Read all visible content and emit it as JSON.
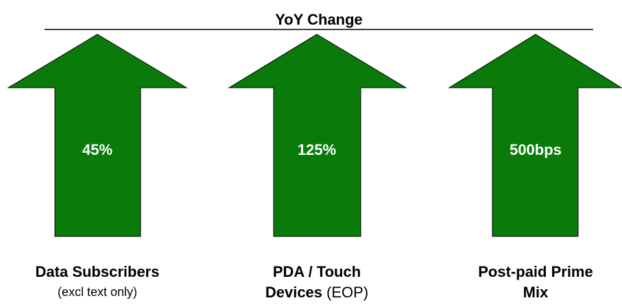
{
  "title": "YoY Change",
  "items": [
    {
      "value": "45%",
      "label_lines": [
        "Data Subscribers"
      ],
      "note": "(excl text only)"
    },
    {
      "value": "125%",
      "label_lines": [
        "PDA / Touch",
        "Devices"
      ],
      "note": "(EOP)"
    },
    {
      "value": "500bps",
      "label_lines": [
        "Post-paid Prime",
        "Mix"
      ]
    }
  ]
}
